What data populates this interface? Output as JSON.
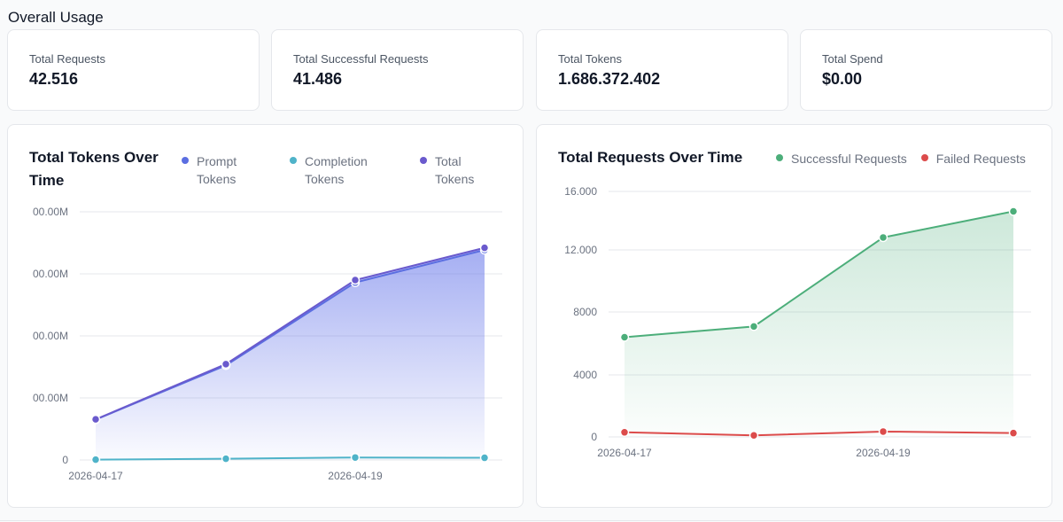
{
  "page": {
    "title": "Overall Usage"
  },
  "stats": [
    {
      "label": "Total Requests",
      "value": "42.516"
    },
    {
      "label": "Total Successful Requests",
      "value": "41.486"
    },
    {
      "label": "Total Tokens",
      "value": "1.686.372.402"
    },
    {
      "label": "Total Spend",
      "value": "$0.00"
    }
  ],
  "tokens_chart": {
    "title_line1": "Total Tokens Over",
    "title_line2": "Time",
    "legend": [
      {
        "line1": "Prompt",
        "line2": "Tokens",
        "color": "#5b6ee1"
      },
      {
        "line1": "Completion",
        "line2": "Tokens",
        "color": "#4fb3c9"
      },
      {
        "line1": "Total",
        "line2": "Tokens",
        "color": "#6a5acd"
      }
    ]
  },
  "requests_chart": {
    "title": "Total Requests Over Time",
    "legend": [
      {
        "label": "Successful Requests",
        "color": "#4cae7a"
      },
      {
        "label": "Failed Requests",
        "color": "#dc4b4b"
      }
    ]
  },
  "chart_data": [
    {
      "type": "area",
      "x": [
        "2026-04-17",
        "2026-04-18",
        "2026-04-19",
        "2026-04-20"
      ],
      "x_tick_labels": [
        "2026-04-17",
        "",
        "2026-04-19",
        ""
      ],
      "y_tick_labels": [
        "00.00M",
        "00.00M",
        "00.00M",
        "00.00M",
        "0"
      ],
      "ylim": [
        0,
        800
      ],
      "series": [
        {
          "name": "Prompt Tokens",
          "values": [
            130,
            305,
            572,
            677
          ],
          "color": "#5b6ee1"
        },
        {
          "name": "Completion Tokens",
          "values": [
            1,
            4,
            8,
            7
          ],
          "color": "#4fb3c9"
        },
        {
          "name": "Total Tokens",
          "values": [
            131,
            309,
            580,
            684
          ],
          "color": "#6a5acd"
        }
      ]
    },
    {
      "type": "area",
      "x": [
        "2026-04-17",
        "2026-04-18",
        "2026-04-19",
        "2026-04-20"
      ],
      "x_tick_labels": [
        "2026-04-17",
        "",
        "2026-04-19",
        ""
      ],
      "y_tick_labels": [
        "0",
        "4000",
        "8000",
        "12.000",
        "16.000"
      ],
      "y_ticks": [
        0,
        4000,
        8000,
        12000,
        16000
      ],
      "ylim": [
        0,
        16000
      ],
      "series": [
        {
          "name": "Successful Requests",
          "values": [
            6500,
            7200,
            13000,
            14700
          ],
          "color": "#4cae7a"
        },
        {
          "name": "Failed Requests",
          "values": [
            300,
            100,
            350,
            250
          ],
          "color": "#dc4b4b"
        }
      ]
    }
  ]
}
